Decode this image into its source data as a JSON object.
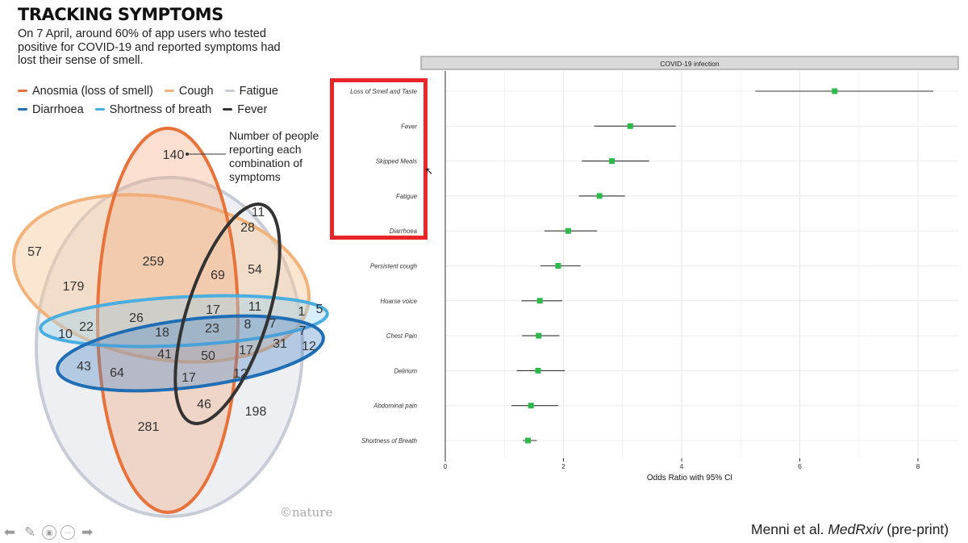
{
  "header": {
    "title": "TRACKING SYMPTOMS",
    "subtitle": "On 7 April, around 60% of app users who tested positive for COVID-19 and reported symptoms had lost their sense of smell."
  },
  "legend": [
    {
      "label": "Anosmia (loss of smell)",
      "color": "#e8733a"
    },
    {
      "label": "Cough",
      "color": "#f2b27a"
    },
    {
      "label": "Fatigue",
      "color": "#c8ccd6"
    },
    {
      "label": "Diarrhoea",
      "color": "#1f6eb5"
    },
    {
      "label": "Shortness of breath",
      "color": "#4aaee0"
    },
    {
      "label": "Fever",
      "color": "#333333"
    }
  ],
  "venn_note": "Number of people reporting each combination of symptoms",
  "venn_counts": [
    "140",
    "11",
    "28",
    "57",
    "259",
    "69",
    "54",
    "179",
    "17",
    "11",
    "1",
    "5",
    "26",
    "10",
    "22",
    "18",
    "23",
    "8",
    "7",
    "7",
    "31",
    "12",
    "41",
    "50",
    "17",
    "43",
    "64",
    "17",
    "12",
    "46",
    "198",
    "281"
  ],
  "credit": "©nature",
  "nav": {
    "icons": [
      "back-arrow-icon",
      "pen-icon",
      "slides-icon",
      "more-icon",
      "forward-arrow-icon"
    ]
  },
  "chart_data": {
    "type": "scatter",
    "facet_label": "COVID-19 infection",
    "xlabel": "Odds Ratio with 95% CI",
    "xlim": [
      0,
      8.5
    ],
    "xticks": [
      "0",
      "2",
      "4",
      "6",
      "8"
    ],
    "grid": true,
    "marker_color": "#2db84a",
    "series": [
      {
        "symptoms": [
          "Loss of Smell and Taste",
          "Fever",
          "Skipped Meals",
          "Fatigue",
          "Diarrhoea",
          "Persistent cough",
          "Hoarse voice",
          "Chest Pain",
          "Delirium",
          "Abdominal pain",
          "Shortness of Breath"
        ],
        "odds_ratio": [
          6.59,
          3.13,
          2.82,
          2.61,
          2.08,
          1.91,
          1.6,
          1.58,
          1.57,
          1.45,
          1.4
        ],
        "ci_low": [
          5.25,
          2.52,
          2.31,
          2.26,
          1.68,
          1.61,
          1.29,
          1.3,
          1.21,
          1.12,
          1.31
        ],
        "ci_high": [
          8.26,
          3.9,
          3.45,
          3.04,
          2.57,
          2.29,
          1.98,
          1.93,
          2.02,
          1.91,
          1.55
        ]
      }
    ],
    "highlighted": [
      "Loss of Smell and Taste",
      "Fever",
      "Skipped Meals",
      "Fatigue",
      "Diarrhoea"
    ]
  },
  "citation": {
    "authors": "Menni et al.",
    "journal": "MedRxiv",
    "note": "(pre-print)"
  }
}
